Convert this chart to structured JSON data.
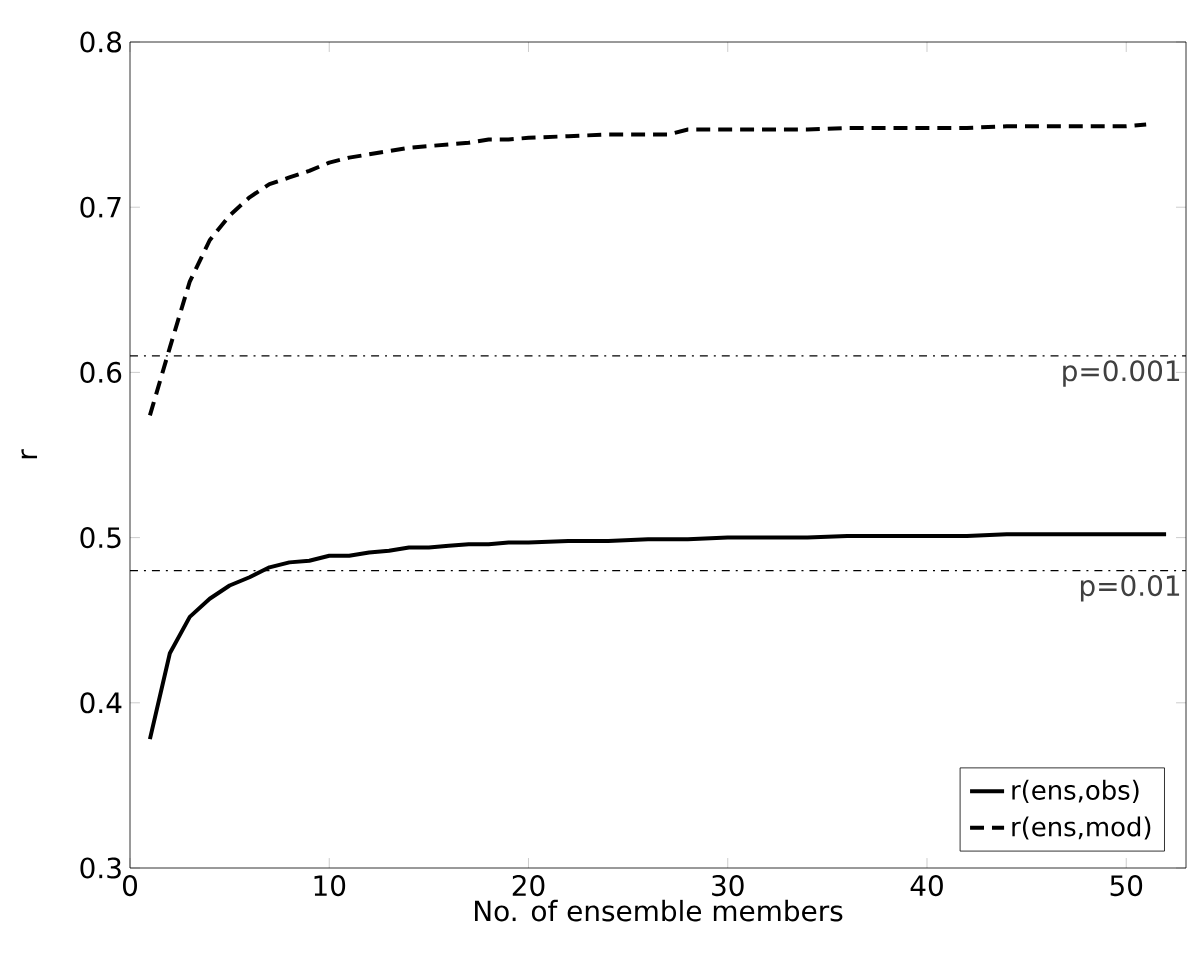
{
  "chart_data": {
    "type": "line",
    "xlabel": "No. of ensemble members",
    "ylabel": "r",
    "xlim": [
      0,
      53
    ],
    "ylim": [
      0.3,
      0.8
    ],
    "xticks": [
      0,
      10,
      20,
      30,
      40,
      50
    ],
    "yticks": [
      0.3,
      0.4,
      0.5,
      0.6,
      0.7,
      0.8
    ],
    "grid": false,
    "legend": "bottom right",
    "marker": "none",
    "series": [
      {
        "name": "r(ens,obs)",
        "color": "#000000",
        "line_style": "solid",
        "x": [
          1,
          2,
          3,
          4,
          5,
          6,
          7,
          8,
          9,
          10,
          11,
          12,
          13,
          14,
          15,
          16,
          17,
          18,
          19,
          20,
          22,
          24,
          26,
          28,
          30,
          32,
          34,
          36,
          38,
          40,
          42,
          44,
          46,
          48,
          50,
          52
        ],
        "values": [
          0.378,
          0.43,
          0.452,
          0.463,
          0.471,
          0.476,
          0.482,
          0.485,
          0.486,
          0.489,
          0.489,
          0.491,
          0.492,
          0.494,
          0.494,
          0.495,
          0.496,
          0.496,
          0.497,
          0.497,
          0.498,
          0.498,
          0.499,
          0.499,
          0.5,
          0.5,
          0.5,
          0.501,
          0.501,
          0.501,
          0.501,
          0.502,
          0.502,
          0.502,
          0.502,
          0.502
        ]
      },
      {
        "name": "r(ens,mod)",
        "color": "#000000",
        "line_style": "dashed",
        "x": [
          1,
          2,
          3,
          4,
          5,
          6,
          7,
          8,
          9,
          10,
          11,
          12,
          13,
          14,
          15,
          16,
          17,
          18,
          19,
          20,
          22,
          24,
          26,
          27,
          28,
          30,
          32,
          34,
          36,
          38,
          40,
          42,
          44,
          46,
          48,
          50,
          51
        ],
        "values": [
          0.574,
          0.615,
          0.655,
          0.68,
          0.695,
          0.706,
          0.714,
          0.718,
          0.722,
          0.727,
          0.73,
          0.732,
          0.734,
          0.736,
          0.737,
          0.738,
          0.739,
          0.741,
          0.741,
          0.742,
          0.743,
          0.744,
          0.744,
          0.744,
          0.747,
          0.747,
          0.747,
          0.747,
          0.748,
          0.748,
          0.748,
          0.748,
          0.749,
          0.749,
          0.749,
          0.749,
          0.75
        ]
      }
    ],
    "ref_lines": [
      {
        "axis": "y",
        "value": 0.61,
        "color": "#000000",
        "line_style": "dashdot"
      },
      {
        "axis": "y",
        "value": 0.48,
        "color": "#000000",
        "line_style": "dashdot"
      }
    ],
    "annotations": [
      {
        "text": "p=0.001",
        "y": 0.61
      },
      {
        "text": "p=0.01",
        "y": 0.48
      }
    ]
  }
}
